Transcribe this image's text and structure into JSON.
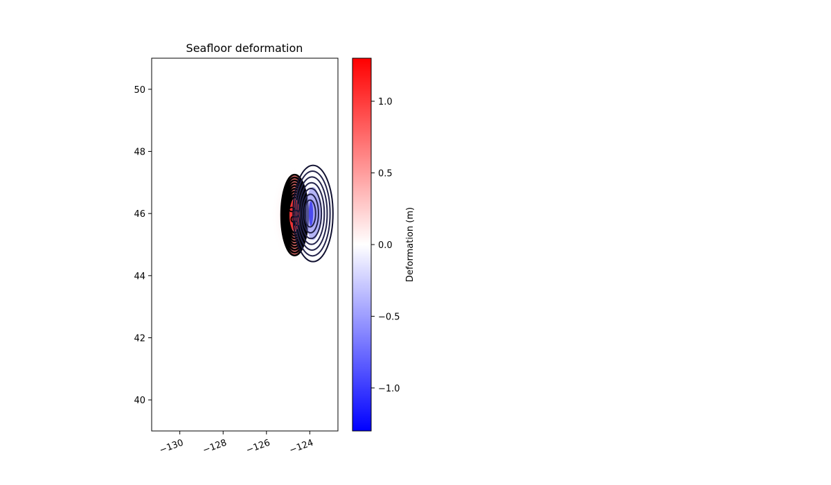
{
  "chart_data": {
    "type": "heatmap",
    "title": "Seafloor deformation",
    "xlabel": "",
    "ylabel": "",
    "xlim": [
      -131.3,
      -122.7
    ],
    "ylim": [
      39,
      51
    ],
    "x_ticks": [
      -130,
      -128,
      -126,
      -124
    ],
    "x_tick_labels": [
      "−130",
      "−128",
      "−126",
      "−124"
    ],
    "y_ticks": [
      40,
      42,
      44,
      46,
      48,
      50
    ],
    "y_tick_labels": [
      "40",
      "42",
      "44",
      "46",
      "48",
      "50"
    ],
    "grid": false,
    "colorbar": {
      "label": "Deformation (m)",
      "colormap": "bwr",
      "range": [
        -1.3,
        1.3
      ],
      "ticks": [
        -1.0,
        -0.5,
        0.0,
        0.5,
        1.0
      ],
      "tick_labels": [
        "−1.0",
        "−0.5",
        "0.0",
        "0.5",
        "1.0"
      ]
    },
    "uplift_lobe": {
      "center_lon": -124.7,
      "center_lat": 45.95,
      "peak_m": 1.3
    },
    "subsidence_lobe": {
      "center_lon": -123.85,
      "center_lat": 46.0,
      "peak_m": -1.3
    },
    "contour_color": "#000000"
  }
}
